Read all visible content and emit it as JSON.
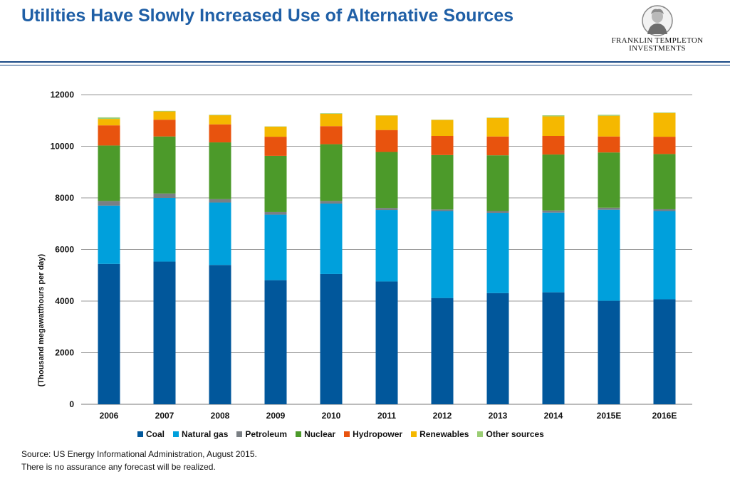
{
  "page": {
    "title": "Utilities Have Slowly Increased Use of Alternative Sources",
    "logo_line1": "FRANKLIN TEMPLETON",
    "logo_line2": "INVESTMENTS",
    "source_line1": "Source: US Energy Informational Administration, August 2015.",
    "source_line2": "There is no assurance any forecast will be realized."
  },
  "chart_data": {
    "type": "bar",
    "stacked": true,
    "title": "",
    "xlabel": "",
    "ylabel": "(Thousand megawatthours per day)",
    "ylim": [
      0,
      12000
    ],
    "yticks": [
      0,
      2000,
      4000,
      6000,
      8000,
      10000,
      12000
    ],
    "grid": true,
    "legend_position": "bottom",
    "categories": [
      "2006",
      "2007",
      "2008",
      "2009",
      "2010",
      "2011",
      "2012",
      "2013",
      "2014",
      "2015E",
      "2016E"
    ],
    "series": [
      {
        "name": "Coal",
        "color": "#01579b",
        "values": [
          5440,
          5530,
          5400,
          4810,
          5050,
          4760,
          4120,
          4310,
          4340,
          4010,
          4070
        ]
      },
      {
        "name": "Natural gas",
        "color": "#00a0dc",
        "values": [
          2260,
          2470,
          2420,
          2540,
          2730,
          2770,
          3370,
          3110,
          3090,
          3530,
          3420
        ]
      },
      {
        "name": "Petroleum",
        "color": "#7a7f84",
        "values": [
          180,
          170,
          130,
          100,
          100,
          80,
          60,
          70,
          80,
          80,
          70
        ]
      },
      {
        "name": "Nuclear",
        "color": "#4c9a2a",
        "values": [
          2150,
          2210,
          2200,
          2180,
          2200,
          2170,
          2110,
          2160,
          2170,
          2140,
          2140
        ]
      },
      {
        "name": "Hydropower",
        "color": "#e8530e",
        "values": [
          780,
          650,
          700,
          740,
          700,
          850,
          740,
          730,
          720,
          620,
          670
        ]
      },
      {
        "name": "Renewables",
        "color": "#f5b800",
        "values": [
          250,
          320,
          350,
          390,
          480,
          560,
          620,
          710,
          760,
          800,
          920
        ]
      },
      {
        "name": "Other sources",
        "color": "#9acd74",
        "values": [
          60,
          20,
          20,
          10,
          20,
          10,
          10,
          20,
          40,
          40,
          20
        ]
      }
    ]
  }
}
